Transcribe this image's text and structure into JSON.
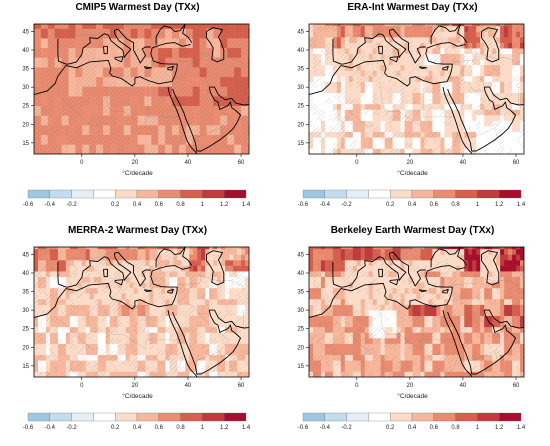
{
  "panels": [
    {
      "title": "CMIP5 Warmest Day (TXx)",
      "pattern": 0
    },
    {
      "title": "ERA-Int Warmest Day (TXx)",
      "pattern": 1
    },
    {
      "title": "MERRA-2 Warmest Day (TXx)",
      "pattern": 2
    },
    {
      "title": "Berkeley Earth Warmest Day (TXx)",
      "pattern": 3
    }
  ],
  "axes": {
    "lon_ticks": [
      "0",
      "20",
      "40",
      "60"
    ],
    "lat_ticks": [
      "45",
      "40",
      "35",
      "30",
      "25",
      "20",
      "15"
    ]
  },
  "legend": {
    "unit": "°C/decade",
    "labels": [
      "-0.6",
      "-0.4",
      "-0.2",
      "0.2",
      "0.4",
      "0.6",
      "0.8",
      "1",
      "1.2",
      "1.4"
    ],
    "colors": [
      "#9ec8e1",
      "#c3ddee",
      "#e3eef6",
      "#ffffff",
      "#fbdcc8",
      "#f6b79c",
      "#ea8c72",
      "#d6604d",
      "#c03a3e",
      "#a50f2d"
    ]
  }
}
